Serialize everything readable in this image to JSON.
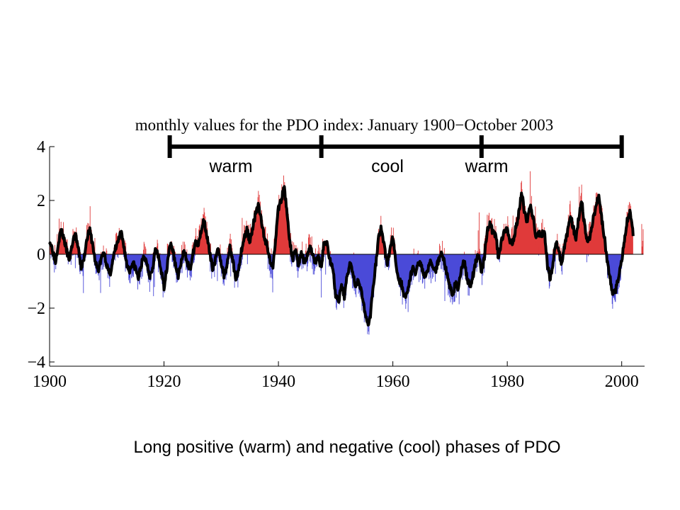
{
  "chart_data": {
    "type": "area",
    "title": "monthly values for the PDO index: January 1900−October 2003",
    "xlim": [
      1900,
      2004
    ],
    "ylim": [
      -4,
      4
    ],
    "xticks": [
      1900,
      1920,
      1940,
      1960,
      1980,
      2000
    ],
    "xtick_labels": [
      "1900",
      "1920",
      "1940",
      "1960",
      "1980",
      "2000"
    ],
    "yticks": [
      4,
      2,
      0,
      -2,
      -4
    ],
    "ytick_labels": [
      "4",
      "2",
      "0",
      "−2",
      "−4"
    ],
    "positive_color": "#e03a3a",
    "negative_color": "#4a4ad8",
    "smoothed_line_color": "#000000",
    "grid": false,
    "x": [
      1900,
      1900.5,
      1901,
      1901.5,
      1902,
      1902.5,
      1903,
      1903.5,
      1904,
      1904.5,
      1905,
      1905.5,
      1906,
      1906.5,
      1907,
      1907.5,
      1908,
      1908.5,
      1909,
      1909.5,
      1910,
      1910.5,
      1911,
      1911.5,
      1912,
      1912.5,
      1913,
      1913.5,
      1914,
      1914.5,
      1915,
      1915.5,
      1916,
      1916.5,
      1917,
      1917.5,
      1918,
      1918.5,
      1919,
      1919.5,
      1920,
      1920.5,
      1921,
      1921.5,
      1922,
      1922.5,
      1923,
      1923.5,
      1924,
      1924.5,
      1925,
      1925.5,
      1926,
      1926.5,
      1927,
      1927.5,
      1928,
      1928.5,
      1929,
      1929.5,
      1930,
      1930.5,
      1931,
      1931.5,
      1932,
      1932.5,
      1933,
      1933.5,
      1934,
      1934.5,
      1935,
      1935.5,
      1936,
      1936.5,
      1937,
      1937.5,
      1938,
      1938.5,
      1939,
      1939.5,
      1940,
      1940.5,
      1941,
      1941.5,
      1942,
      1942.5,
      1943,
      1943.5,
      1944,
      1944.5,
      1945,
      1945.5,
      1946,
      1946.5,
      1947,
      1947.5,
      1948,
      1948.5,
      1949,
      1949.5,
      1950,
      1950.5,
      1951,
      1951.5,
      1952,
      1952.5,
      1953,
      1953.5,
      1954,
      1954.5,
      1955,
      1955.5,
      1956,
      1956.5,
      1957,
      1957.5,
      1958,
      1958.5,
      1959,
      1959.5,
      1960,
      1960.5,
      1961,
      1961.5,
      1962,
      1962.5,
      1963,
      1963.5,
      1964,
      1964.5,
      1965,
      1965.5,
      1966,
      1966.5,
      1967,
      1967.5,
      1968,
      1968.5,
      1969,
      1969.5,
      1970,
      1970.5,
      1971,
      1971.5,
      1972,
      1972.5,
      1973,
      1973.5,
      1974,
      1974.5,
      1975,
      1975.5,
      1976,
      1976.5,
      1977,
      1977.5,
      1978,
      1978.5,
      1979,
      1979.5,
      1980,
      1980.5,
      1981,
      1981.5,
      1982,
      1982.5,
      1983,
      1983.5,
      1984,
      1984.5,
      1985,
      1985.5,
      1986,
      1986.5,
      1987,
      1987.5,
      1988,
      1988.5,
      1989,
      1989.5,
      1990,
      1990.5,
      1991,
      1991.5,
      1992,
      1992.5,
      1993,
      1993.5,
      1994,
      1994.5,
      1995,
      1995.5,
      1996,
      1996.5,
      1997,
      1997.5,
      1998,
      1998.5,
      1999,
      1999.5,
      2000,
      2000.5,
      2001,
      2001.5,
      2002,
      2002.5,
      2003,
      2003.5
    ],
    "smoothed": [
      0.5,
      0.2,
      -0.3,
      0.4,
      0.9,
      0.6,
      0.1,
      -0.2,
      0.4,
      0.8,
      0.2,
      -0.5,
      -0.2,
      0.6,
      0.9,
      0.4,
      -0.3,
      -0.6,
      -0.2,
      0.1,
      -0.4,
      -0.8,
      -0.3,
      0.2,
      0.5,
      0.8,
      0.3,
      -0.4,
      -0.6,
      -0.3,
      -0.5,
      -0.9,
      -0.4,
      -0.1,
      -0.3,
      -0.8,
      -0.5,
      0.2,
      -0.1,
      -0.6,
      -1.2,
      -0.5,
      0.4,
      0.2,
      -0.4,
      -0.8,
      -0.3,
      0.1,
      -0.2,
      -0.6,
      -0.1,
      0.5,
      0.3,
      0.9,
      1.3,
      0.7,
      0.0,
      -0.5,
      -0.2,
      0.2,
      -0.3,
      -0.8,
      -0.4,
      0.3,
      -0.2,
      -0.9,
      -0.6,
      0.1,
      0.6,
      0.9,
      0.5,
      1.0,
      1.5,
      1.8,
      1.3,
      0.6,
      0.4,
      -0.2,
      -0.5,
      0.6,
      1.7,
      2.0,
      2.5,
      1.6,
      0.4,
      -0.2,
      0.2,
      -0.4,
      0.1,
      -0.3,
      -0.1,
      0.3,
      0.0,
      -0.3,
      -0.1,
      -0.5,
      0.5,
      0.4,
      -0.2,
      -0.5,
      -1.5,
      -1.8,
      -1.2,
      -1.6,
      -0.8,
      -0.3,
      -0.6,
      -1.2,
      -0.9,
      -1.4,
      -2.0,
      -2.6,
      -2.4,
      -1.3,
      -0.4,
      0.6,
      1.0,
      0.3,
      -0.4,
      0.2,
      0.6,
      -0.3,
      -0.9,
      -1.1,
      -1.6,
      -1.4,
      -0.9,
      -0.5,
      -0.7,
      -0.3,
      -0.4,
      -0.8,
      -0.6,
      -0.3,
      -0.4,
      -0.6,
      -0.2,
      0.1,
      -0.3,
      -0.8,
      -1.2,
      -1.5,
      -1.0,
      -1.3,
      -0.4,
      -0.3,
      -0.9,
      -1.2,
      -0.8,
      -0.3,
      0.1,
      -0.7,
      -0.1,
      0.9,
      1.1,
      0.8,
      0.7,
      -0.2,
      0.5,
      0.8,
      0.9,
      0.4,
      0.5,
      1.0,
      1.5,
      2.3,
      1.6,
      1.2,
      1.8,
      1.4,
      0.6,
      0.8,
      0.7,
      0.9,
      -0.4,
      -0.9,
      -0.3,
      0.4,
      0.2,
      -0.4,
      0.3,
      0.8,
      1.5,
      1.0,
      0.6,
      1.4,
      2.0,
      1.1,
      0.4,
      0.7,
      1.3,
      1.8,
      2.2,
      1.3,
      0.6,
      -0.3,
      -0.9,
      -1.6,
      -1.3,
      -0.8,
      -0.2,
      0.5,
      1.3,
      1.6,
      0.7
    ]
  },
  "annotations": {
    "warm_1": "warm",
    "cool": "cool",
    "warm_2": "warm",
    "phase_boundaries": [
      1921,
      1947.5,
      1975.5,
      2000
    ]
  },
  "caption": "Long positive (warm) and negative (cool) phases of PDO"
}
